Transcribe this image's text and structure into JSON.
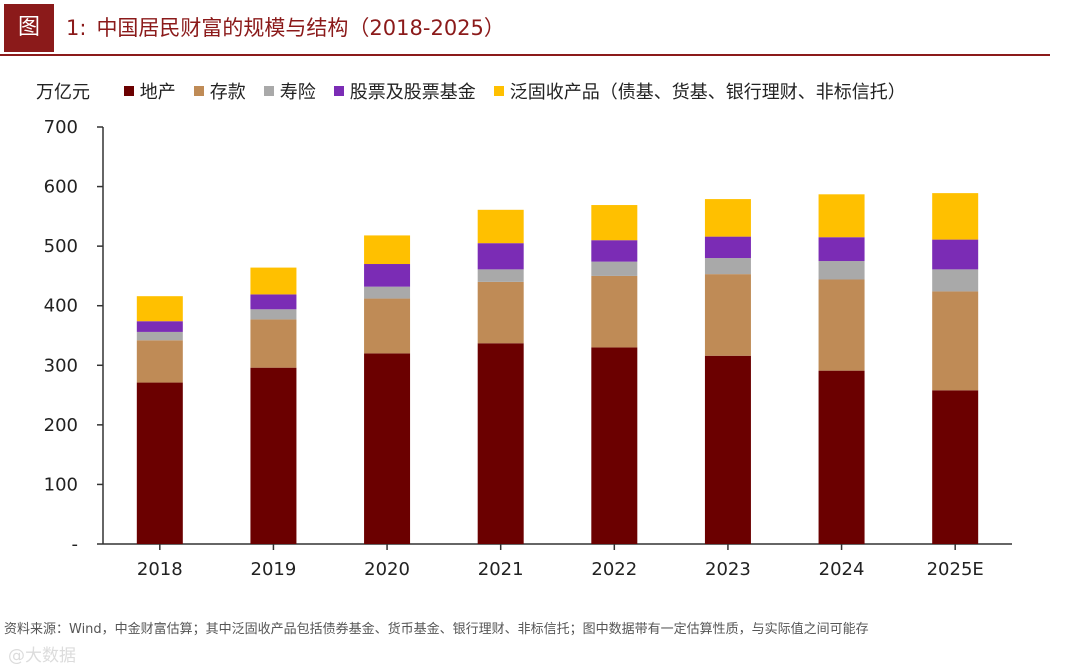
{
  "header": {
    "tag": "图",
    "number": "1:",
    "title": "中国居民财富的规模与结构（2018-2025）"
  },
  "legend": {
    "unit": "万亿元"
  },
  "chart_data": {
    "type": "bar",
    "stacked": true,
    "unit": "万亿元",
    "categories": [
      "2018",
      "2019",
      "2020",
      "2021",
      "2022",
      "2023",
      "2024",
      "2025E"
    ],
    "ylim": [
      0,
      700
    ],
    "yticks": [
      0,
      100,
      200,
      300,
      400,
      500,
      600,
      700
    ],
    "ytick_labels": [
      "-",
      "100",
      "200",
      "300",
      "400",
      "500",
      "600",
      "700"
    ],
    "series": [
      {
        "name": "地产",
        "color": "#6b0000",
        "values": [
          271,
          296,
          320,
          337,
          330,
          316,
          291,
          258
        ]
      },
      {
        "name": "存款",
        "color": "#bf8b56",
        "values": [
          71,
          81,
          92,
          103,
          120,
          137,
          153,
          166
        ]
      },
      {
        "name": "寿险",
        "color": "#a9a9a9",
        "values": [
          14,
          17,
          20,
          21,
          24,
          27,
          31,
          37
        ]
      },
      {
        "name": "股票及股票基金",
        "color": "#7b2cb5",
        "values": [
          18,
          25,
          38,
          44,
          36,
          36,
          40,
          50
        ]
      },
      {
        "name": "泛固收产品（债基、货基、银行理财、非标信托）",
        "color": "#ffc000",
        "values": [
          42,
          45,
          48,
          56,
          59,
          63,
          72,
          78
        ]
      }
    ]
  },
  "footer": {
    "source_note": "资料来源：Wind，中金财富估算；其中泛固收产品包括债券基金、货币基金、银行理财、非标信托；图中数据带有一定估算性质，与实际值之间可能存",
    "watermark": "@大数据"
  }
}
